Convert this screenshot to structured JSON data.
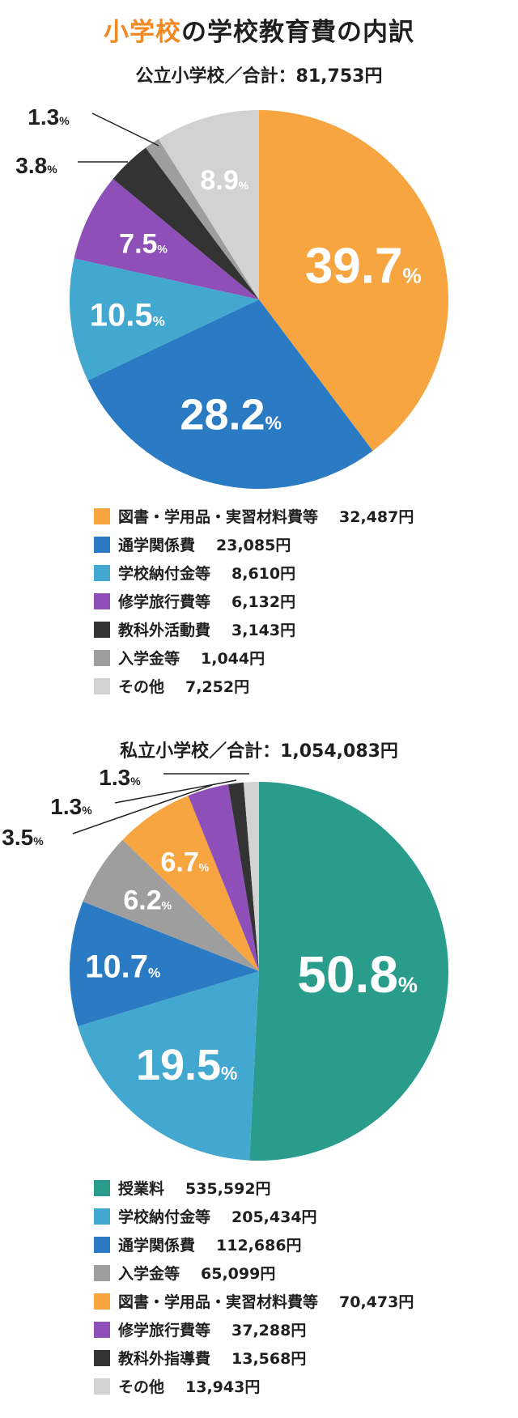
{
  "title": {
    "accent": "小学校",
    "rest": "の学校教育費の内訳"
  },
  "chart_data": [
    {
      "type": "pie",
      "title": "公立小学校／合計：81,753円",
      "unit": "%",
      "slices": [
        {
          "label": "図書・学用品・実習材料費等",
          "percent": 39.7,
          "amount": "32,487円",
          "color": "#f7a540"
        },
        {
          "label": "通学関係費",
          "percent": 28.2,
          "amount": "23,085円",
          "color": "#2b7bc4"
        },
        {
          "label": "学校納付金等",
          "percent": 10.5,
          "amount": "8,610円",
          "color": "#42a8cf"
        },
        {
          "label": "修学旅行費等",
          "percent": 7.5,
          "amount": "6,132円",
          "color": "#8e4fb8"
        },
        {
          "label": "教科外活動費",
          "percent": 3.8,
          "amount": "3,143円",
          "color": "#333333"
        },
        {
          "label": "入学金等",
          "percent": 1.3,
          "amount": "1,044円",
          "color": "#9e9e9e"
        },
        {
          "label": "その他",
          "percent": 8.9,
          "amount": "7,252円",
          "color": "#d2d2d2"
        }
      ]
    },
    {
      "type": "pie",
      "title": "私立小学校／合計：1,054,083円",
      "unit": "%",
      "slices": [
        {
          "label": "授業料",
          "percent": 50.8,
          "amount": "535,592円",
          "color": "#2a9c8c"
        },
        {
          "label": "学校納付金等",
          "percent": 19.5,
          "amount": "205,434円",
          "color": "#42a8cf"
        },
        {
          "label": "通学関係費",
          "percent": 10.7,
          "amount": "112,686円",
          "color": "#2b7bc4"
        },
        {
          "label": "入学金等",
          "percent": 6.2,
          "amount": "65,099円",
          "color": "#9e9e9e"
        },
        {
          "label": "図書・学用品・実習材料費等",
          "percent": 6.7,
          "amount": "70,473円",
          "color": "#f7a540"
        },
        {
          "label": "修学旅行費等",
          "percent": 3.5,
          "amount": "37,288円",
          "color": "#8e4fb8"
        },
        {
          "label": "教科外指導費",
          "percent": 1.3,
          "amount": "13,568円",
          "color": "#333333"
        },
        {
          "label": "その他",
          "percent": 1.3,
          "amount": "13,943円",
          "color": "#d2d2d2"
        }
      ]
    }
  ]
}
